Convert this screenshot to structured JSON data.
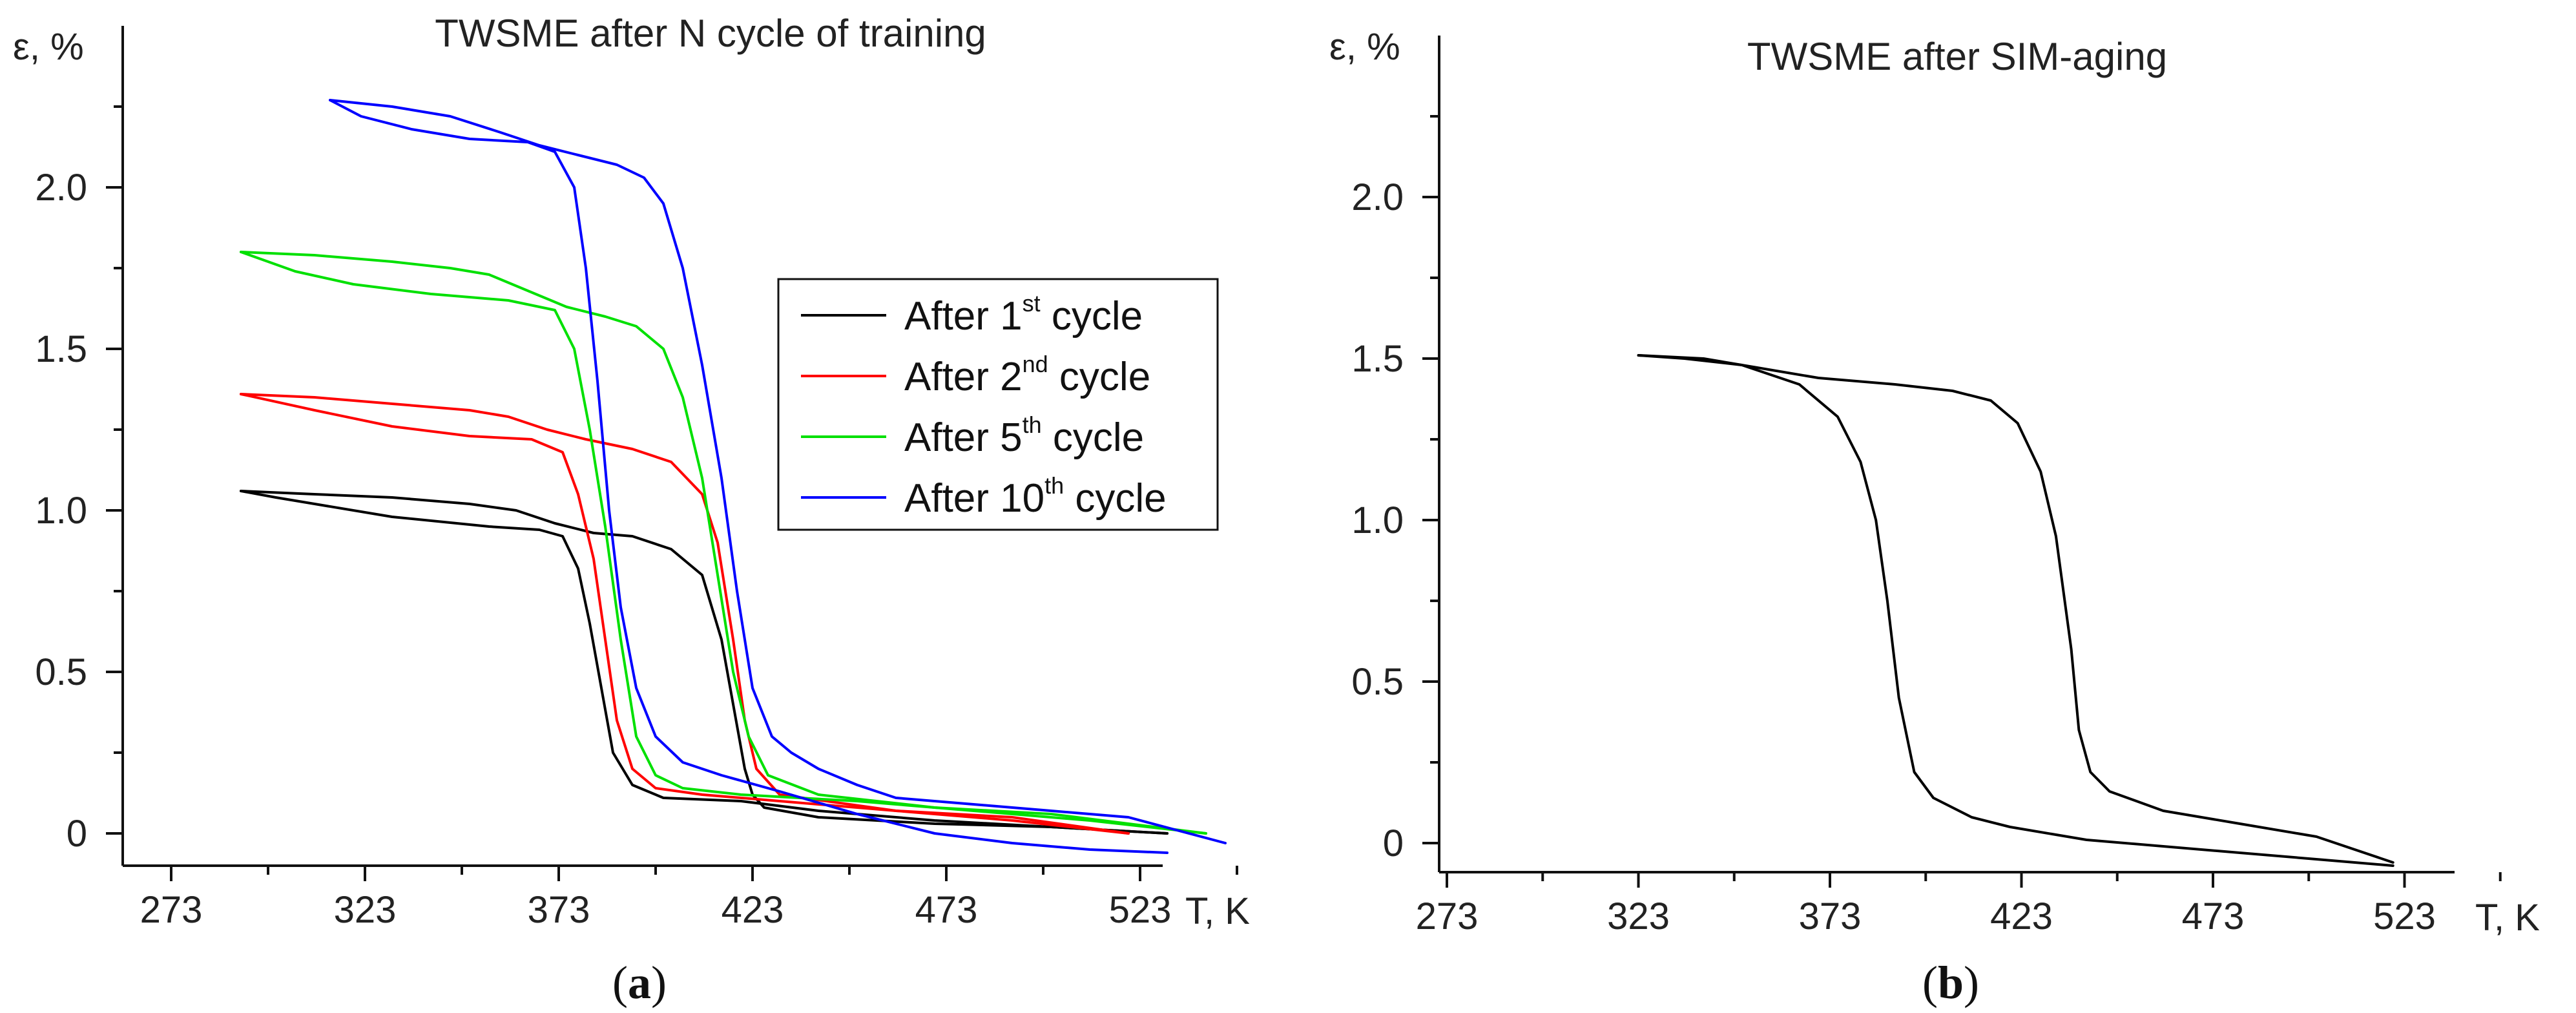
{
  "chart_data": [
    {
      "type": "line",
      "panel_label": "a",
      "title": "TWSME after N cycle of training",
      "xlabel": "T, K",
      "ylabel": "ε, %",
      "xlim": [
        273,
        548
      ],
      "ylim": [
        -0.1,
        2.45
      ],
      "x_ticks": [
        "273",
        "323",
        "373",
        "423",
        "473",
        "523"
      ],
      "x_tick_values": [
        273,
        323,
        373,
        423,
        473,
        523
      ],
      "y_ticks": [
        "0",
        "0.5",
        "1.0",
        "1.5",
        "2.0"
      ],
      "y_tick_values": [
        0,
        0.5,
        1.0,
        1.5,
        2.0
      ],
      "grid": false,
      "legend_placement": "center-right",
      "series": [
        {
          "name_main": "After 1",
          "name_sup": "st",
          "name_tail": " cycle",
          "color": "#000000",
          "heating": [
            [
              291,
              1.06
            ],
            [
              310,
              1.05
            ],
            [
              330,
              1.04
            ],
            [
              350,
              1.02
            ],
            [
              362,
              1.0
            ],
            [
              372,
              0.96
            ],
            [
              382,
              0.93
            ],
            [
              392,
              0.92
            ],
            [
              402,
              0.88
            ],
            [
              410,
              0.8
            ],
            [
              415,
              0.6
            ],
            [
              418,
              0.4
            ],
            [
              421,
              0.2
            ],
            [
              423,
              0.12
            ],
            [
              426,
              0.08
            ],
            [
              440,
              0.05
            ],
            [
              470,
              0.03
            ],
            [
              500,
              0.02
            ],
            [
              530,
              0.0
            ]
          ],
          "cooling": [
            [
              530,
              0.0
            ],
            [
              500,
              0.02
            ],
            [
              470,
              0.04
            ],
            [
              440,
              0.07
            ],
            [
              420,
              0.1
            ],
            [
              400,
              0.11
            ],
            [
              392,
              0.15
            ],
            [
              387,
              0.25
            ],
            [
              384,
              0.45
            ],
            [
              381,
              0.65
            ],
            [
              378,
              0.82
            ],
            [
              374,
              0.92
            ],
            [
              368,
              0.94
            ],
            [
              355,
              0.95
            ],
            [
              330,
              0.98
            ],
            [
              310,
              1.02
            ],
            [
              300,
              1.04
            ],
            [
              291,
              1.06
            ]
          ]
        },
        {
          "name_main": "After 2",
          "name_sup": "nd",
          "name_tail": " cycle",
          "color": "#ff0000",
          "heating": [
            [
              291,
              1.36
            ],
            [
              310,
              1.35
            ],
            [
              330,
              1.33
            ],
            [
              350,
              1.31
            ],
            [
              360,
              1.29
            ],
            [
              370,
              1.25
            ],
            [
              380,
              1.22
            ],
            [
              392,
              1.19
            ],
            [
              402,
              1.15
            ],
            [
              410,
              1.05
            ],
            [
              414,
              0.9
            ],
            [
              418,
              0.6
            ],
            [
              421,
              0.35
            ],
            [
              424,
              0.2
            ],
            [
              430,
              0.12
            ],
            [
              460,
              0.07
            ],
            [
              490,
              0.05
            ],
            [
              520,
              0.0
            ]
          ],
          "cooling": [
            [
              520,
              0.0
            ],
            [
              490,
              0.04
            ],
            [
              460,
              0.07
            ],
            [
              430,
              0.1
            ],
            [
              410,
              0.12
            ],
            [
              398,
              0.14
            ],
            [
              392,
              0.2
            ],
            [
              388,
              0.35
            ],
            [
              385,
              0.6
            ],
            [
              382,
              0.85
            ],
            [
              378,
              1.05
            ],
            [
              374,
              1.18
            ],
            [
              366,
              1.22
            ],
            [
              350,
              1.23
            ],
            [
              330,
              1.26
            ],
            [
              310,
              1.31
            ],
            [
              291,
              1.36
            ]
          ]
        },
        {
          "name_main": "After 5",
          "name_sup": "th",
          "name_tail": " cycle",
          "color": "#00e000",
          "heating": [
            [
              291,
              1.8
            ],
            [
              310,
              1.79
            ],
            [
              330,
              1.77
            ],
            [
              345,
              1.75
            ],
            [
              355,
              1.73
            ],
            [
              365,
              1.68
            ],
            [
              375,
              1.63
            ],
            [
              385,
              1.6
            ],
            [
              393,
              1.57
            ],
            [
              400,
              1.5
            ],
            [
              405,
              1.35
            ],
            [
              410,
              1.1
            ],
            [
              414,
              0.8
            ],
            [
              418,
              0.5
            ],
            [
              422,
              0.3
            ],
            [
              427,
              0.18
            ],
            [
              440,
              0.12
            ],
            [
              470,
              0.08
            ],
            [
              500,
              0.06
            ],
            [
              540,
              0.0
            ]
          ],
          "cooling": [
            [
              540,
              0.0
            ],
            [
              510,
              0.04
            ],
            [
              480,
              0.07
            ],
            [
              450,
              0.1
            ],
            [
              420,
              0.12
            ],
            [
              405,
              0.14
            ],
            [
              398,
              0.18
            ],
            [
              393,
              0.3
            ],
            [
              389,
              0.6
            ],
            [
              385,
              0.95
            ],
            [
              381,
              1.25
            ],
            [
              377,
              1.5
            ],
            [
              372,
              1.62
            ],
            [
              360,
              1.65
            ],
            [
              340,
              1.67
            ],
            [
              320,
              1.7
            ],
            [
              305,
              1.74
            ],
            [
              291,
              1.8
            ]
          ]
        },
        {
          "name_main": "After 10",
          "name_sup": "th",
          "name_tail": " cycle",
          "color": "#0000ff",
          "heating": [
            [
              314,
              2.27
            ],
            [
              330,
              2.25
            ],
            [
              345,
              2.22
            ],
            [
              358,
              2.17
            ],
            [
              368,
              2.13
            ],
            [
              378,
              2.1
            ],
            [
              388,
              2.07
            ],
            [
              395,
              2.03
            ],
            [
              400,
              1.95
            ],
            [
              405,
              1.75
            ],
            [
              410,
              1.45
            ],
            [
              415,
              1.1
            ],
            [
              419,
              0.75
            ],
            [
              423,
              0.45
            ],
            [
              428,
              0.3
            ],
            [
              433,
              0.25
            ],
            [
              440,
              0.2
            ],
            [
              450,
              0.15
            ],
            [
              460,
              0.11
            ],
            [
              480,
              0.09
            ],
            [
              500,
              0.07
            ],
            [
              520,
              0.05
            ],
            [
              545,
              -0.03
            ]
          ],
          "cooling": [
            [
              530,
              -0.06
            ],
            [
              510,
              -0.05
            ],
            [
              490,
              -0.03
            ],
            [
              470,
              0.0
            ],
            [
              450,
              0.06
            ],
            [
              430,
              0.13
            ],
            [
              415,
              0.18
            ],
            [
              405,
              0.22
            ],
            [
              398,
              0.3
            ],
            [
              393,
              0.45
            ],
            [
              389,
              0.7
            ],
            [
              386,
              1.0
            ],
            [
              383,
              1.4
            ],
            [
              380,
              1.75
            ],
            [
              377,
              2.0
            ],
            [
              372,
              2.11
            ],
            [
              365,
              2.14
            ],
            [
              350,
              2.15
            ],
            [
              335,
              2.18
            ],
            [
              322,
              2.22
            ],
            [
              314,
              2.27
            ]
          ]
        }
      ]
    },
    {
      "type": "line",
      "panel_label": "b",
      "title": "TWSME after SIM-aging",
      "xlabel": "T, K",
      "ylabel": "ε, %",
      "xlim": [
        273,
        548
      ],
      "ylim": [
        -0.1,
        2.45
      ],
      "x_ticks": [
        "273",
        "323",
        "373",
        "423",
        "473",
        "523"
      ],
      "x_tick_values": [
        273,
        323,
        373,
        423,
        473,
        523
      ],
      "y_ticks": [
        "0",
        "0.5",
        "1.0",
        "1.5",
        "2.0"
      ],
      "y_tick_values": [
        0,
        0.5,
        1.0,
        1.5,
        2.0
      ],
      "grid": false,
      "series": [
        {
          "color": "#000000",
          "heating": [
            [
              323,
              1.51
            ],
            [
              340,
              1.5
            ],
            [
              355,
              1.47
            ],
            [
              370,
              1.44
            ],
            [
              390,
              1.42
            ],
            [
              405,
              1.4
            ],
            [
              415,
              1.37
            ],
            [
              422,
              1.3
            ],
            [
              428,
              1.15
            ],
            [
              432,
              0.95
            ],
            [
              436,
              0.6
            ],
            [
              438,
              0.35
            ],
            [
              441,
              0.22
            ],
            [
              446,
              0.16
            ],
            [
              460,
              0.1
            ],
            [
              480,
              0.06
            ],
            [
              500,
              0.02
            ],
            [
              520,
              -0.06
            ]
          ],
          "cooling": [
            [
              520,
              -0.07
            ],
            [
              500,
              -0.05
            ],
            [
              480,
              -0.03
            ],
            [
              460,
              -0.01
            ],
            [
              440,
              0.01
            ],
            [
              420,
              0.05
            ],
            [
              410,
              0.08
            ],
            [
              400,
              0.14
            ],
            [
              395,
              0.22
            ],
            [
              391,
              0.45
            ],
            [
              388,
              0.75
            ],
            [
              385,
              1.0
            ],
            [
              381,
              1.18
            ],
            [
              375,
              1.32
            ],
            [
              365,
              1.42
            ],
            [
              350,
              1.48
            ],
            [
              335,
              1.5
            ],
            [
              323,
              1.51
            ]
          ]
        }
      ]
    }
  ]
}
